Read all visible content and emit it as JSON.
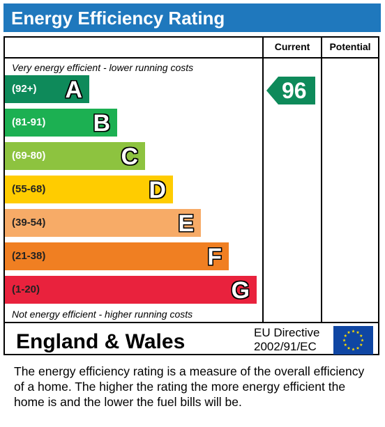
{
  "header": {
    "title": "Energy Efficiency Rating",
    "color": "#1f78bd"
  },
  "columns": {
    "current": "Current",
    "potential": "Potential"
  },
  "captions": {
    "top": "Very energy efficient - lower running costs",
    "bottom": "Not energy efficient - higher running costs"
  },
  "bands": [
    {
      "range": "(92+)",
      "letter": "A",
      "color": "#0e8a5a"
    },
    {
      "range": "(81-91)",
      "letter": "B",
      "color": "#1cb052"
    },
    {
      "range": "(69-80)",
      "letter": "C",
      "color": "#8dc33f"
    },
    {
      "range": "(55-68)",
      "letter": "D",
      "color": "#ffcc00"
    },
    {
      "range": "(39-54)",
      "letter": "E",
      "color": "#f7ab67"
    },
    {
      "range": "(21-38)",
      "letter": "F",
      "color": "#f07f22"
    },
    {
      "range": "(1-20)",
      "letter": "G",
      "color": "#e9223d"
    }
  ],
  "current_rating": {
    "value": "96",
    "color": "#0e8a5a"
  },
  "region": "England & Wales",
  "directive": {
    "line1": "EU Directive",
    "line2": "2002/91/EC"
  },
  "flag_icon": "eu-flag-icon",
  "footer": "The energy efficiency rating is a measure of the overall efficiency of a home.  The higher the rating the more energy efficient the home is and the lower the fuel bills will be."
}
